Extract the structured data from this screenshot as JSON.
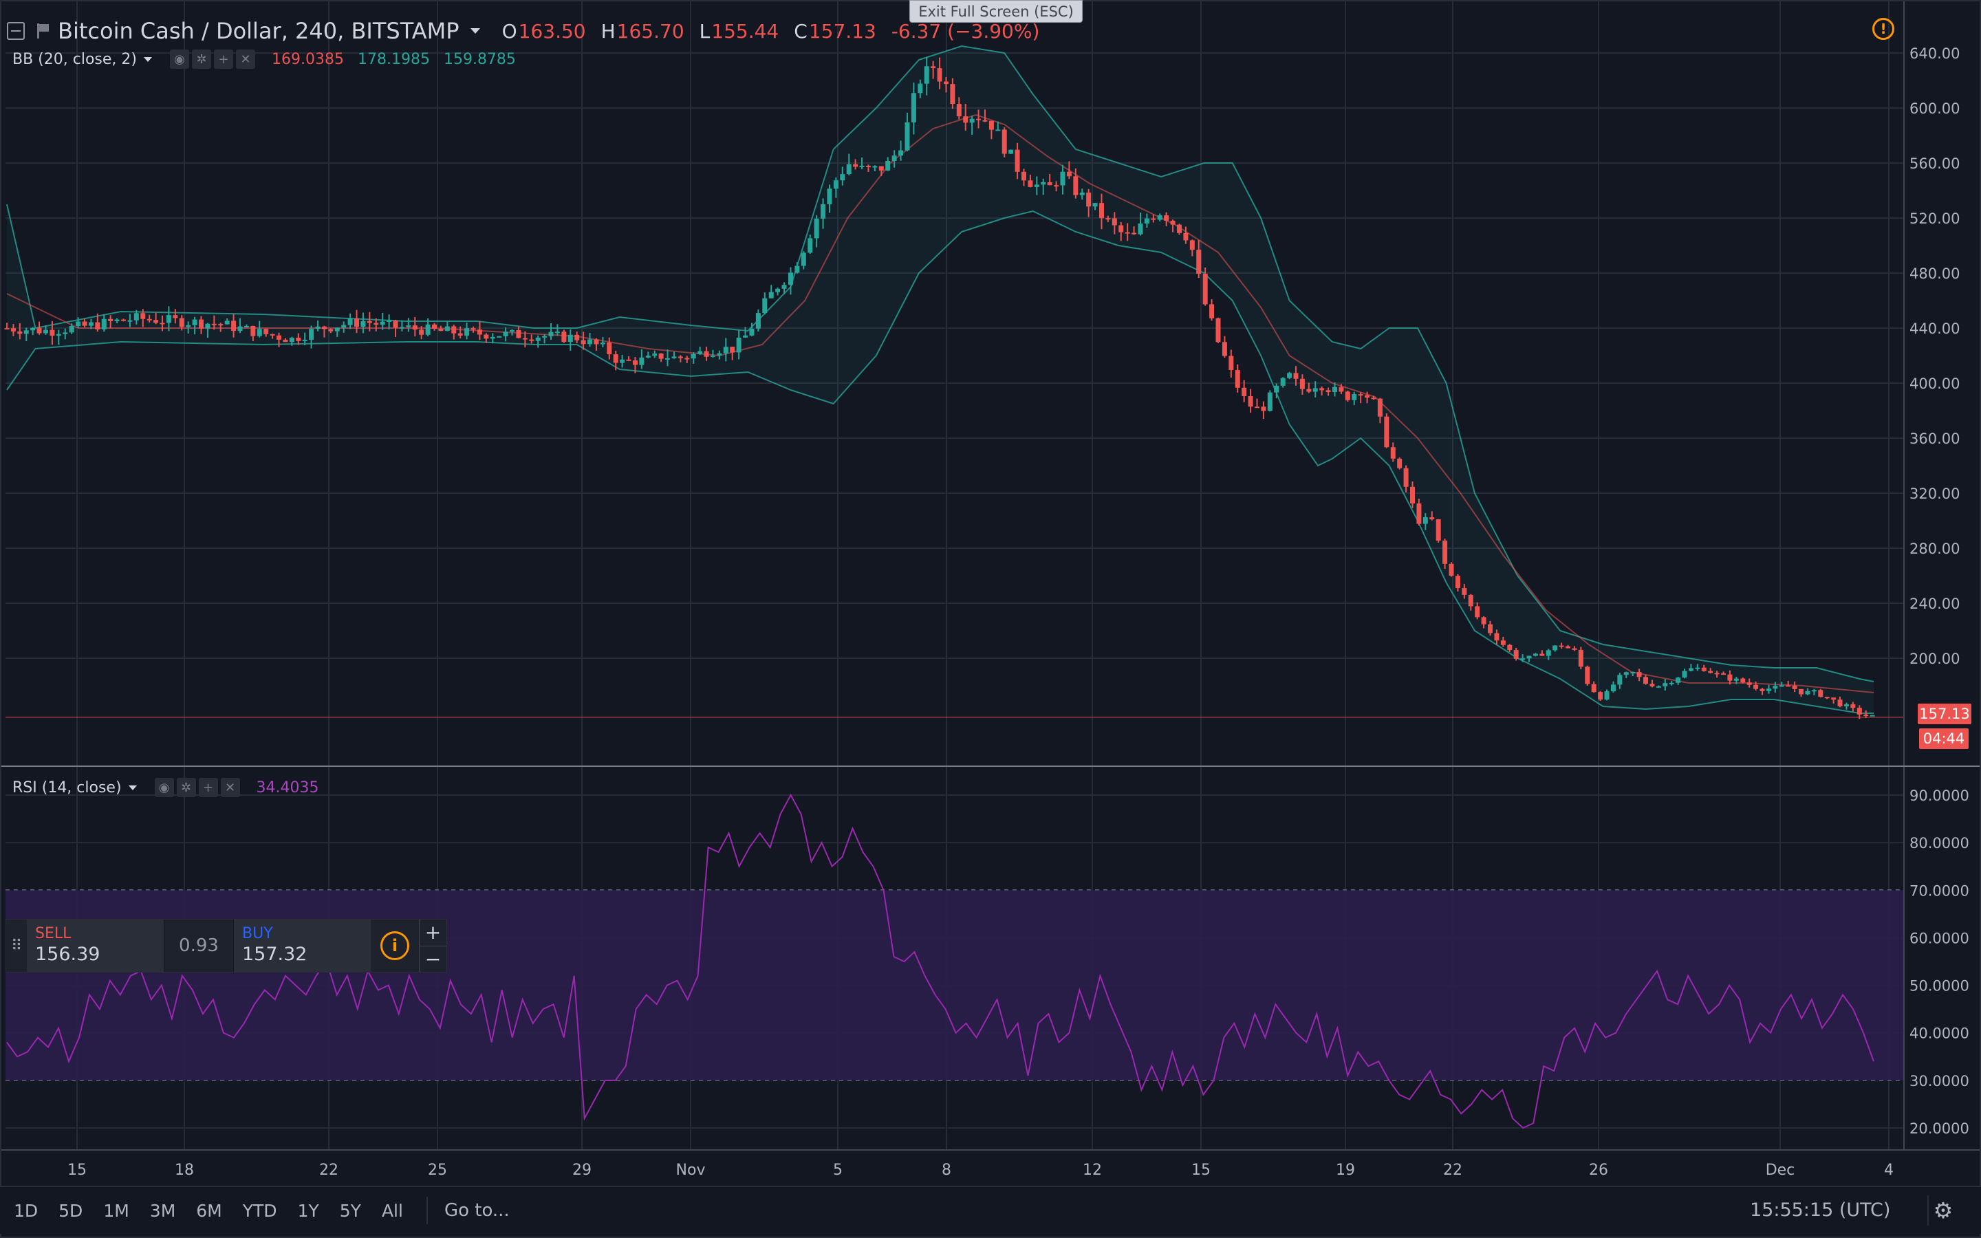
{
  "header": {
    "symbol_title": "Bitcoin Cash / Dollar, 240, BITSTAMP",
    "open_key": "O",
    "open": "163.50",
    "high_key": "H",
    "high": "165.70",
    "low_key": "L",
    "low": "155.44",
    "close_key": "C",
    "close": "157.13",
    "change": "-6.37 (−3.90%)"
  },
  "exit_fullscreen_label": "Exit Full Screen (ESC)",
  "indicators": {
    "bb": {
      "name": "BB (20, close, 2)",
      "basis": "169.0385",
      "upper": "178.1985",
      "lower": "159.8785"
    },
    "rsi": {
      "name": "RSI (14, close)",
      "value": "34.4035"
    }
  },
  "price_tags": {
    "last_price": "157.13",
    "countdown": "04:44"
  },
  "trade_panel": {
    "sell_label": "SELL",
    "sell_price": "156.39",
    "spread": "0.93",
    "buy_label": "BUY",
    "buy_price": "157.32",
    "plus": "+",
    "minus": "−"
  },
  "bottom_bar": {
    "ranges": [
      "1D",
      "5D",
      "1M",
      "3M",
      "6M",
      "YTD",
      "1Y",
      "5Y",
      "All"
    ],
    "goto_label": "Go to...",
    "clock": "15:55:15 (UTC)"
  },
  "colors": {
    "background": "#131722",
    "up": "#26a69a",
    "down": "#ef5350",
    "bb_band": "#26a69a",
    "bb_basis": "#ef5350",
    "rsi_line": "#9c27b0",
    "rsi_zone": "#2a1e4a",
    "grid": "#262b37"
  },
  "chart_data": [
    {
      "type": "candlestick",
      "title": "Bitcoin Cash / Dollar, 240, BITSTAMP",
      "ylim": [
        120,
        660
      ],
      "y_ticks": [
        "640.00",
        "600.00",
        "560.00",
        "520.00",
        "480.00",
        "440.00",
        "400.00",
        "360.00",
        "320.00",
        "280.00",
        "240.00",
        "200.00"
      ],
      "x_ticks": [
        "15",
        "18",
        "22",
        "25",
        "29",
        "Nov",
        "5",
        "8",
        "12",
        "15",
        "19",
        "22",
        "26",
        "Dec",
        "4"
      ],
      "close_path": [
        [
          0,
          440
        ],
        [
          3,
          438
        ],
        [
          6,
          442
        ],
        [
          9,
          447
        ],
        [
          12,
          445
        ],
        [
          15,
          443
        ],
        [
          18,
          436
        ],
        [
          20,
          432
        ],
        [
          22,
          440
        ],
        [
          25,
          445
        ],
        [
          27,
          441
        ],
        [
          30,
          438
        ],
        [
          33,
          436
        ],
        [
          36,
          435
        ],
        [
          38,
          434
        ],
        [
          40,
          433
        ],
        [
          42,
          425
        ],
        [
          43,
          415
        ],
        [
          45,
          417
        ],
        [
          46,
          420
        ],
        [
          47,
          418
        ],
        [
          48,
          420
        ],
        [
          49,
          423
        ],
        [
          50,
          425
        ],
        [
          51,
          425
        ],
        [
          52,
          436
        ],
        [
          53,
          455
        ],
        [
          54,
          470
        ],
        [
          55,
          480
        ],
        [
          56,
          500
        ],
        [
          57,
          525
        ],
        [
          58,
          545
        ],
        [
          59,
          560
        ],
        [
          60,
          555
        ],
        [
          61,
          555
        ],
        [
          62,
          560
        ],
        [
          63,
          580
        ],
        [
          64,
          620
        ],
        [
          65,
          630
        ],
        [
          66,
          615
        ],
        [
          67,
          595
        ],
        [
          68,
          595
        ],
        [
          69,
          590
        ],
        [
          70,
          572
        ],
        [
          71,
          555
        ],
        [
          72,
          545
        ],
        [
          73,
          540
        ],
        [
          74,
          552
        ],
        [
          75,
          540
        ],
        [
          76,
          530
        ],
        [
          77,
          520
        ],
        [
          78,
          510
        ],
        [
          79,
          505
        ],
        [
          80,
          520
        ],
        [
          81,
          525
        ],
        [
          82,
          515
        ],
        [
          83,
          505
        ],
        [
          84,
          460
        ],
        [
          85,
          430
        ],
        [
          86,
          405
        ],
        [
          87,
          385
        ],
        [
          88,
          380
        ],
        [
          89,
          395
        ],
        [
          90,
          405
        ],
        [
          91,
          395
        ],
        [
          92,
          400
        ],
        [
          93,
          395
        ],
        [
          94,
          390
        ],
        [
          95,
          395
        ],
        [
          96,
          385
        ],
        [
          97,
          350
        ],
        [
          98,
          330
        ],
        [
          99,
          300
        ],
        [
          100,
          300
        ],
        [
          101,
          265
        ],
        [
          102,
          250
        ],
        [
          103,
          232
        ],
        [
          104,
          220
        ],
        [
          105,
          210
        ],
        [
          106,
          200
        ],
        [
          107,
          200
        ],
        [
          108,
          205
        ],
        [
          109,
          210
        ],
        [
          110,
          205
        ],
        [
          111,
          180
        ],
        [
          112,
          170
        ],
        [
          113,
          185
        ],
        [
          114,
          190
        ],
        [
          115,
          182
        ],
        [
          116,
          180
        ],
        [
          117,
          185
        ],
        [
          118,
          192
        ],
        [
          119,
          193
        ],
        [
          120,
          188
        ],
        [
          121,
          185
        ],
        [
          122,
          182
        ],
        [
          123,
          178
        ],
        [
          124,
          178
        ],
        [
          125,
          180
        ],
        [
          126,
          175
        ],
        [
          127,
          175
        ],
        [
          128,
          170
        ],
        [
          129,
          165
        ],
        [
          130,
          160
        ],
        [
          131,
          157
        ]
      ],
      "bb_upper": [
        [
          0,
          530
        ],
        [
          2,
          440
        ],
        [
          8,
          452
        ],
        [
          18,
          450
        ],
        [
          28,
          445
        ],
        [
          33,
          445
        ],
        [
          37,
          440
        ],
        [
          40,
          440
        ],
        [
          43,
          448
        ],
        [
          48,
          442
        ],
        [
          52,
          438
        ],
        [
          55,
          470
        ],
        [
          58,
          570
        ],
        [
          61,
          600
        ],
        [
          64,
          635
        ],
        [
          67,
          645
        ],
        [
          70,
          640
        ],
        [
          72,
          610
        ],
        [
          75,
          570
        ],
        [
          78,
          560
        ],
        [
          81,
          550
        ],
        [
          84,
          560
        ],
        [
          86,
          560
        ],
        [
          88,
          520
        ],
        [
          90,
          460
        ],
        [
          92,
          440
        ],
        [
          93,
          430
        ],
        [
          95,
          425
        ],
        [
          97,
          440
        ],
        [
          99,
          440
        ],
        [
          101,
          400
        ],
        [
          103,
          320
        ],
        [
          106,
          260
        ],
        [
          109,
          220
        ],
        [
          112,
          210
        ],
        [
          115,
          205
        ],
        [
          118,
          200
        ],
        [
          121,
          195
        ],
        [
          124,
          193
        ],
        [
          127,
          193
        ],
        [
          130,
          185
        ],
        [
          131,
          183
        ]
      ],
      "bb_lower": [
        [
          0,
          395
        ],
        [
          2,
          425
        ],
        [
          8,
          430
        ],
        [
          18,
          428
        ],
        [
          28,
          430
        ],
        [
          33,
          430
        ],
        [
          37,
          428
        ],
        [
          40,
          428
        ],
        [
          43,
          410
        ],
        [
          48,
          405
        ],
        [
          52,
          408
        ],
        [
          55,
          395
        ],
        [
          58,
          385
        ],
        [
          61,
          420
        ],
        [
          64,
          480
        ],
        [
          67,
          510
        ],
        [
          70,
          520
        ],
        [
          72,
          525
        ],
        [
          75,
          510
        ],
        [
          78,
          500
        ],
        [
          81,
          495
        ],
        [
          84,
          480
        ],
        [
          86,
          460
        ],
        [
          88,
          420
        ],
        [
          90,
          370
        ],
        [
          92,
          340
        ],
        [
          93,
          345
        ],
        [
          95,
          360
        ],
        [
          97,
          340
        ],
        [
          99,
          300
        ],
        [
          101,
          255
        ],
        [
          103,
          220
        ],
        [
          106,
          200
        ],
        [
          109,
          185
        ],
        [
          112,
          165
        ],
        [
          115,
          163
        ],
        [
          118,
          165
        ],
        [
          121,
          170
        ],
        [
          124,
          170
        ],
        [
          127,
          165
        ],
        [
          130,
          160
        ],
        [
          131,
          160
        ]
      ],
      "bb_basis": [
        [
          0,
          465
        ],
        [
          5,
          440
        ],
        [
          15,
          440
        ],
        [
          30,
          440
        ],
        [
          40,
          434
        ],
        [
          45,
          425
        ],
        [
          50,
          420
        ],
        [
          53,
          428
        ],
        [
          56,
          460
        ],
        [
          59,
          520
        ],
        [
          62,
          560
        ],
        [
          65,
          585
        ],
        [
          68,
          595
        ],
        [
          70,
          588
        ],
        [
          73,
          565
        ],
        [
          76,
          545
        ],
        [
          79,
          530
        ],
        [
          82,
          515
        ],
        [
          85,
          495
        ],
        [
          88,
          455
        ],
        [
          90,
          420
        ],
        [
          93,
          400
        ],
        [
          96,
          390
        ],
        [
          99,
          360
        ],
        [
          102,
          320
        ],
        [
          105,
          275
        ],
        [
          108,
          235
        ],
        [
          111,
          210
        ],
        [
          114,
          190
        ],
        [
          118,
          182
        ],
        [
          122,
          182
        ],
        [
          126,
          180
        ],
        [
          131,
          175
        ]
      ]
    },
    {
      "type": "line",
      "title": "RSI (14, close)",
      "ylim": [
        15,
        95
      ],
      "y_ticks": [
        "90.0000",
        "80.0000",
        "70.0000",
        "60.0000",
        "50.0000",
        "40.0000",
        "30.0000",
        "20.0000"
      ],
      "overbought": 70,
      "oversold": 30,
      "values": [
        38,
        35,
        36,
        39,
        37,
        41,
        34,
        39,
        48,
        45,
        51,
        48,
        52,
        53,
        47,
        50,
        43,
        52,
        49,
        44,
        47,
        40,
        39,
        42,
        46,
        49,
        47,
        52,
        50,
        48,
        52,
        55,
        48,
        52,
        45,
        53,
        49,
        50,
        44,
        52,
        47,
        45,
        41,
        51,
        46,
        44,
        48,
        38,
        49,
        39,
        47,
        42,
        45,
        46,
        39,
        52,
        22,
        26,
        30,
        30,
        33,
        45,
        48,
        46,
        50,
        51,
        47,
        52,
        79,
        78,
        82,
        75,
        79,
        82,
        79,
        86,
        90,
        86,
        76,
        80,
        75,
        77,
        83,
        78,
        75,
        70,
        56,
        55,
        57,
        52,
        48,
        45,
        40,
        42,
        39,
        43,
        47,
        39,
        42,
        31,
        42,
        44,
        38,
        40,
        49,
        43,
        52,
        46,
        41,
        36,
        28,
        33,
        28,
        36,
        29,
        33,
        27,
        30,
        39,
        42,
        37,
        44,
        39,
        46,
        43,
        40,
        38,
        44,
        35,
        41,
        31,
        36,
        33,
        34,
        30,
        27,
        26,
        29,
        32,
        27,
        26,
        23,
        25,
        28,
        26,
        28,
        22,
        20,
        21,
        33,
        32,
        39,
        41,
        36,
        42,
        39,
        40,
        44,
        47,
        50,
        53,
        47,
        46,
        52,
        48,
        44,
        46,
        50,
        47,
        38,
        42,
        40,
        45,
        48,
        43,
        47,
        41,
        44,
        48,
        45,
        40,
        34
      ]
    }
  ]
}
